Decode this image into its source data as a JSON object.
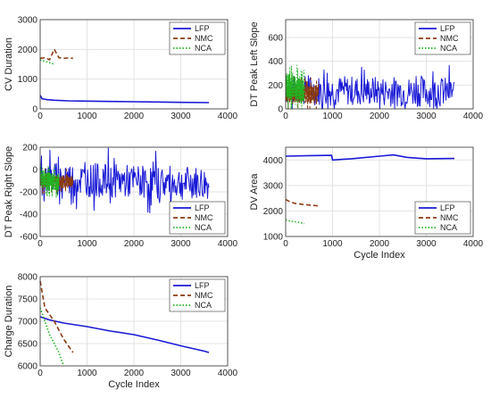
{
  "chart_data": [
    {
      "type": "line",
      "ylabel": "CV Duration",
      "xlabel": "",
      "xlim": [
        0,
        4000
      ],
      "ylim": [
        0,
        3000
      ],
      "xticks": [
        "0",
        "1000",
        "2000",
        "3000",
        "4000"
      ],
      "yticks": [
        "0",
        "1000",
        "2000",
        "3000"
      ],
      "grid": true,
      "legend_position": "top-right",
      "series": [
        {
          "name": "LFP",
          "color": "#1a1ad6",
          "style": "solid",
          "x": [
            0,
            40,
            80,
            150,
            300,
            600,
            1000,
            1500,
            2000,
            2500,
            3000,
            3600
          ],
          "y": [
            460,
            340,
            330,
            310,
            290,
            270,
            260,
            250,
            240,
            230,
            220,
            210
          ]
        },
        {
          "name": "NMC",
          "color": "#8b3a0f",
          "style": "dashed",
          "x": [
            0,
            100,
            200,
            300,
            400,
            500,
            600,
            700
          ],
          "y": [
            1700,
            1720,
            1650,
            2000,
            1720,
            1700,
            1710,
            1700
          ]
        },
        {
          "name": "NCA",
          "color": "#22b222",
          "style": "dotted",
          "x": [
            0,
            100,
            200,
            300
          ],
          "y": [
            1650,
            1600,
            1550,
            1500
          ]
        }
      ]
    },
    {
      "type": "line",
      "ylabel": "DT Peak Left Slope",
      "xlabel": "",
      "xlim": [
        0,
        4000
      ],
      "ylim": [
        0,
        750
      ],
      "xticks": [
        "0",
        "1000",
        "2000",
        "3000",
        "4000"
      ],
      "yticks": [
        "0",
        "200",
        "400",
        "600"
      ],
      "grid": true,
      "legend_position": "top-right",
      "series": [
        {
          "name": "LFP",
          "color": "#1a1ad6",
          "style": "solid",
          "x": [
            0,
            3600
          ],
          "y": [
            160,
            140
          ],
          "noise": 250
        },
        {
          "name": "NMC",
          "color": "#8b3a0f",
          "style": "dashed",
          "x": [
            0,
            700
          ],
          "y": [
            130,
            120
          ],
          "noise": 150
        },
        {
          "name": "NCA",
          "color": "#22b222",
          "style": "dotted",
          "x": [
            0,
            400
          ],
          "y": [
            200,
            150
          ],
          "noise": 200
        }
      ]
    },
    {
      "type": "line",
      "ylabel": "DT Peak Right Slope",
      "xlabel": "",
      "xlim": [
        0,
        4000
      ],
      "ylim": [
        -600,
        200
      ],
      "xticks": [
        "0",
        "1000",
        "2000",
        "3000",
        "4000"
      ],
      "yticks": [
        "-600",
        "-400",
        "-200",
        "0",
        "200"
      ],
      "grid": true,
      "legend_position": "bottom-right",
      "series": [
        {
          "name": "LFP",
          "color": "#1a1ad6",
          "style": "solid",
          "x": [
            0,
            3600
          ],
          "y": [
            -80,
            -130
          ],
          "noise": 300
        },
        {
          "name": "NMC",
          "color": "#8b3a0f",
          "style": "dashed",
          "x": [
            0,
            700
          ],
          "y": [
            -100,
            -110
          ],
          "noise": 120
        },
        {
          "name": "NCA",
          "color": "#22b222",
          "style": "dotted",
          "x": [
            0,
            400
          ],
          "y": [
            -80,
            -120
          ],
          "noise": 150
        }
      ]
    },
    {
      "type": "line",
      "ylabel": "DV Area",
      "xlabel": "Cycle Index",
      "xlim": [
        0,
        4000
      ],
      "ylim": [
        1000,
        4500
      ],
      "xticks": [
        "0",
        "1000",
        "2000",
        "3000",
        "4000"
      ],
      "yticks": [
        "1000",
        "2000",
        "3000",
        "4000"
      ],
      "grid": true,
      "legend_position": "bottom-right",
      "series": [
        {
          "name": "LFP",
          "color": "#1a1ad6",
          "style": "solid",
          "x": [
            0,
            500,
            980,
            1000,
            1400,
            2000,
            2300,
            2600,
            3000,
            3600
          ],
          "y": [
            4150,
            4170,
            4180,
            4000,
            4050,
            4150,
            4200,
            4100,
            4050,
            4060
          ]
        },
        {
          "name": "NMC",
          "color": "#8b3a0f",
          "style": "dashed",
          "x": [
            0,
            100,
            200,
            400,
            700
          ],
          "y": [
            2450,
            2350,
            2300,
            2250,
            2200
          ]
        },
        {
          "name": "NCA",
          "color": "#22b222",
          "style": "dotted",
          "x": [
            0,
            100,
            200,
            300,
            400
          ],
          "y": [
            1650,
            1600,
            1580,
            1550,
            1500
          ]
        }
      ]
    },
    {
      "type": "line",
      "ylabel": "Charge Duration",
      "xlabel": "Cycle Index",
      "xlim": [
        0,
        4000
      ],
      "ylim": [
        6000,
        8000
      ],
      "xticks": [
        "0",
        "1000",
        "2000",
        "3000",
        "4000"
      ],
      "yticks": [
        "6000",
        "6500",
        "7000",
        "7500",
        "8000"
      ],
      "grid": true,
      "legend_position": "top-right",
      "series": [
        {
          "name": "LFP",
          "color": "#1a1ad6",
          "style": "solid",
          "x": [
            0,
            200,
            500,
            1000,
            1500,
            2000,
            2500,
            3000,
            3500,
            3600
          ],
          "y": [
            7100,
            7030,
            6960,
            6880,
            6780,
            6700,
            6580,
            6450,
            6330,
            6300
          ]
        },
        {
          "name": "NMC",
          "color": "#8b3a0f",
          "style": "dashed",
          "x": [
            0,
            100,
            200,
            300,
            400,
            500,
            600,
            700
          ],
          "y": [
            7900,
            7300,
            7150,
            7000,
            6800,
            6600,
            6450,
            6300
          ]
        },
        {
          "name": "NCA",
          "color": "#22b222",
          "style": "dotted",
          "x": [
            0,
            100,
            200,
            300,
            400,
            500
          ],
          "y": [
            7300,
            7000,
            6700,
            6500,
            6300,
            6000
          ]
        }
      ]
    }
  ]
}
